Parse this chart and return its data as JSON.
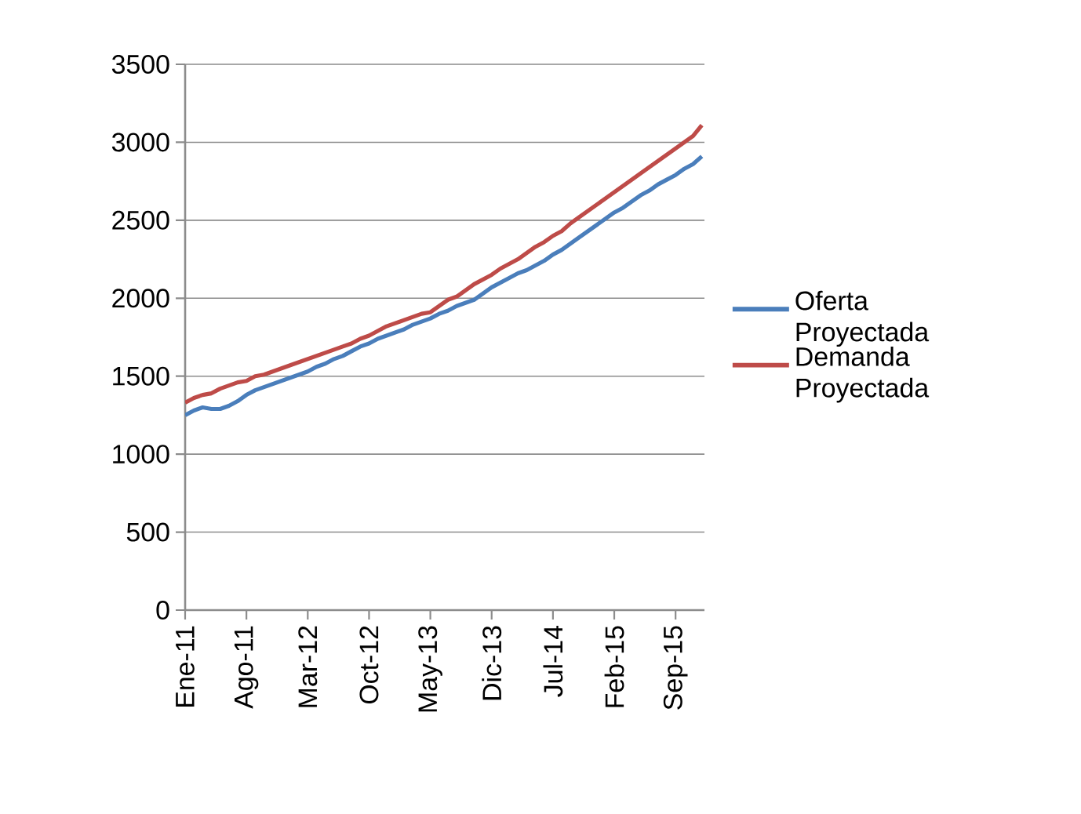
{
  "chart_data": {
    "type": "line",
    "categories": [
      "Ene-11",
      null,
      null,
      null,
      null,
      null,
      null,
      "Ago-11",
      null,
      null,
      null,
      null,
      null,
      null,
      "Mar-12",
      null,
      null,
      null,
      null,
      null,
      null,
      "Oct-12",
      null,
      null,
      null,
      null,
      null,
      null,
      "May-13",
      null,
      null,
      null,
      null,
      null,
      null,
      "Dic-13",
      null,
      null,
      null,
      null,
      null,
      null,
      "Jul-14",
      null,
      null,
      null,
      null,
      null,
      null,
      "Feb-15",
      null,
      null,
      null,
      null,
      null,
      null,
      "Sep-15",
      null,
      null,
      null
    ],
    "series": [
      {
        "name": "Oferta Proyectada",
        "color": "#4a7ebb",
        "values": [
          1250,
          1280,
          1300,
          1290,
          1290,
          1310,
          1340,
          1380,
          1410,
          1430,
          1450,
          1470,
          1490,
          1510,
          1530,
          1560,
          1580,
          1610,
          1630,
          1660,
          1690,
          1710,
          1740,
          1760,
          1780,
          1800,
          1830,
          1850,
          1870,
          1900,
          1920,
          1950,
          1970,
          1990,
          2030,
          2070,
          2100,
          2130,
          2160,
          2180,
          2210,
          2240,
          2280,
          2310,
          2350,
          2390,
          2430,
          2470,
          2510,
          2550,
          2580,
          2620,
          2660,
          2690,
          2730,
          2760,
          2790,
          2830,
          2860,
          2910
        ]
      },
      {
        "name": "Demanda Proyectada",
        "color": "#be4b48",
        "values": [
          1330,
          1360,
          1380,
          1390,
          1420,
          1440,
          1460,
          1470,
          1500,
          1510,
          1530,
          1550,
          1570,
          1590,
          1610,
          1630,
          1650,
          1670,
          1690,
          1710,
          1740,
          1760,
          1790,
          1820,
          1840,
          1860,
          1880,
          1900,
          1910,
          1950,
          1990,
          2010,
          2050,
          2090,
          2120,
          2150,
          2190,
          2220,
          2250,
          2290,
          2330,
          2360,
          2400,
          2430,
          2480,
          2520,
          2560,
          2600,
          2640,
          2680,
          2720,
          2760,
          2800,
          2840,
          2880,
          2920,
          2960,
          3000,
          3040,
          3110
        ]
      }
    ],
    "ylim": [
      0,
      3500
    ],
    "yticks": [
      0,
      500,
      1000,
      1500,
      2000,
      2500,
      3000,
      3500
    ],
    "grid": "y",
    "legend": "right"
  }
}
